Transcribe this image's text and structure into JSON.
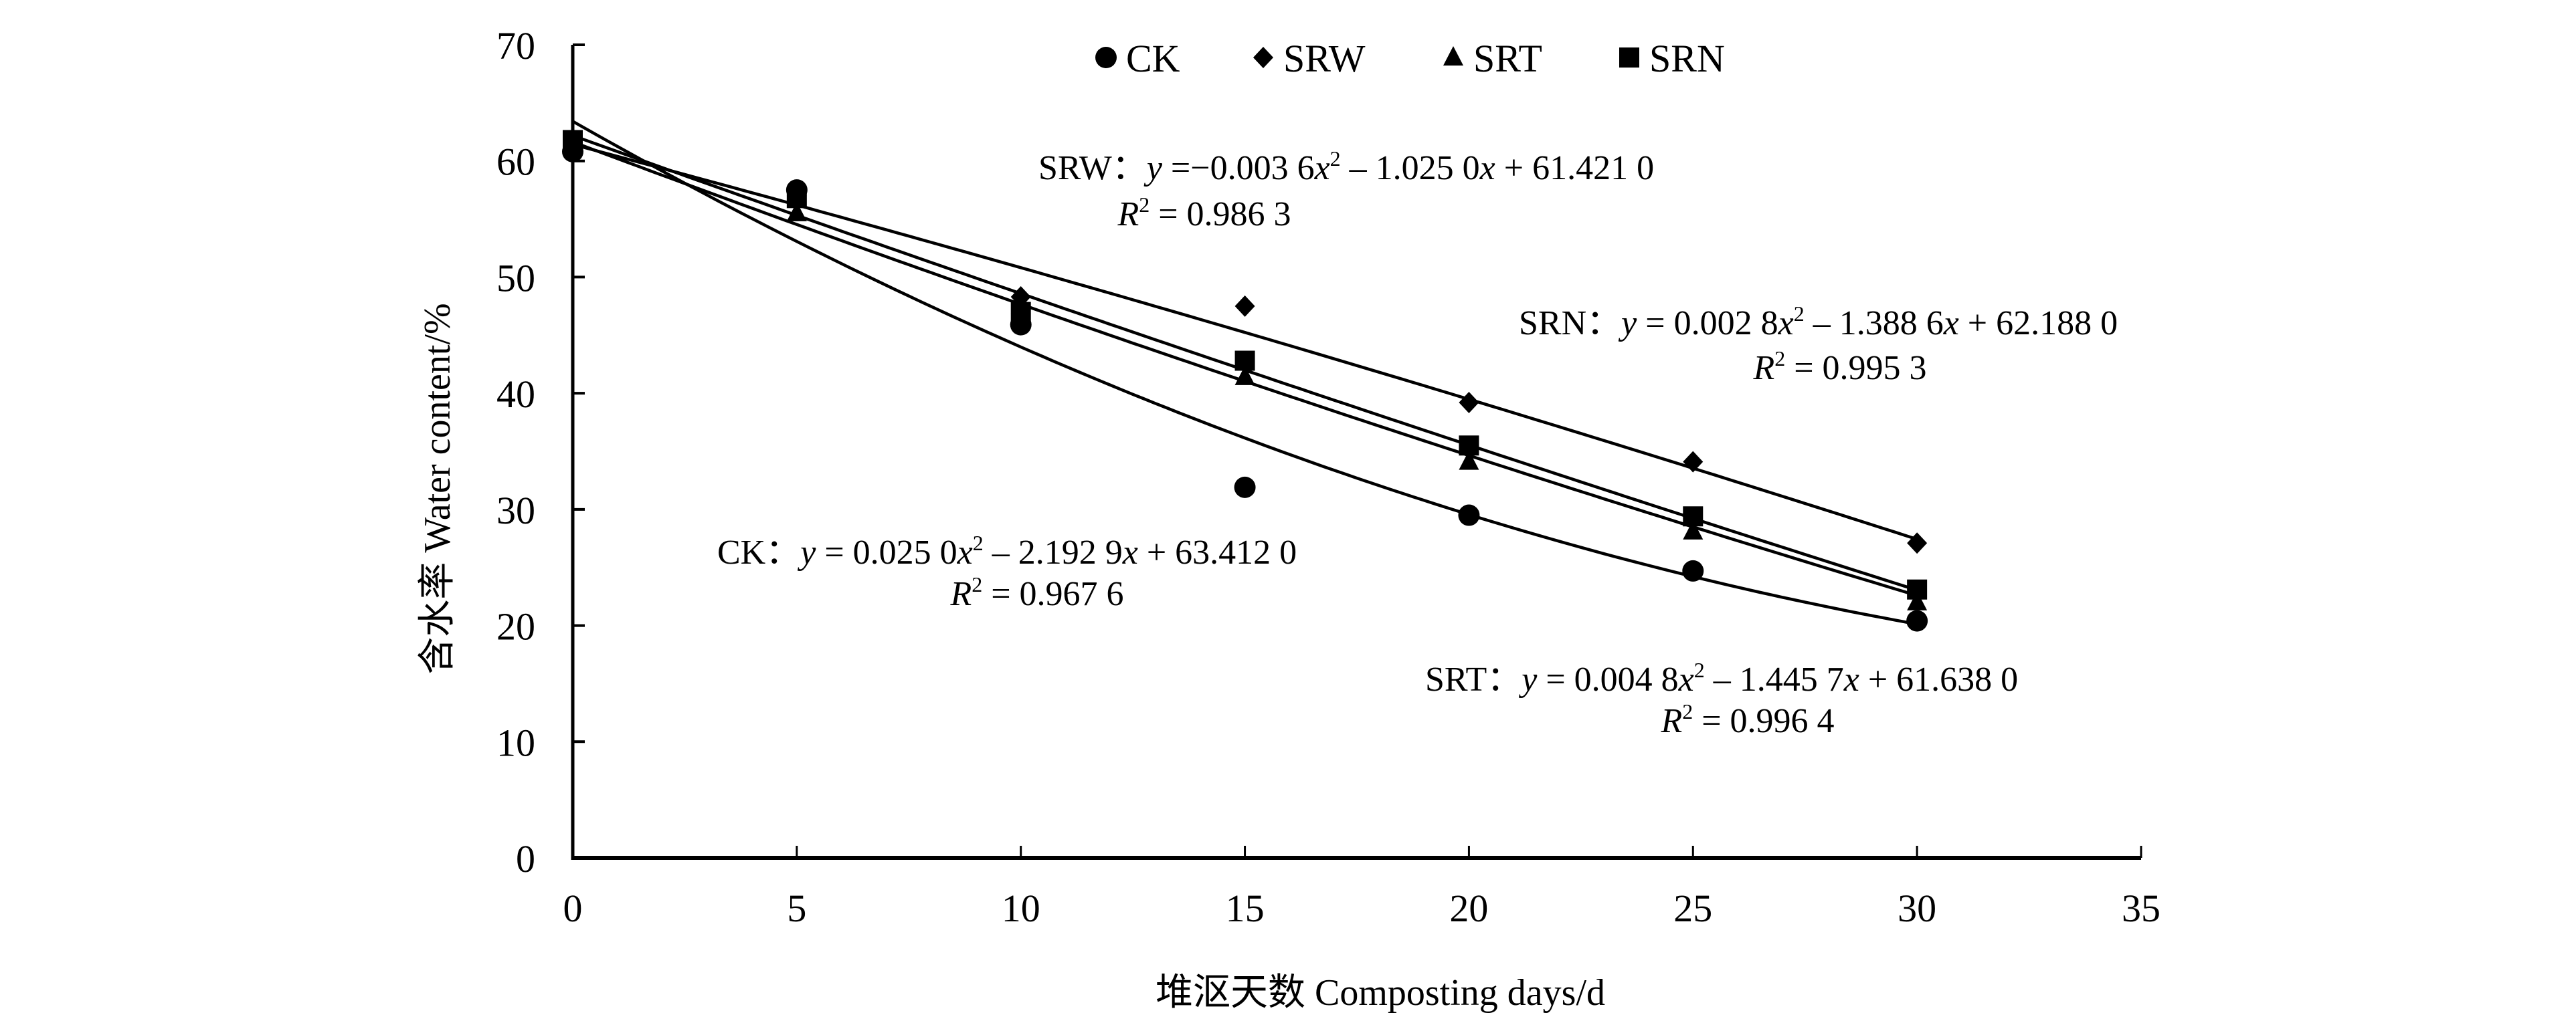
{
  "chart_data": {
    "type": "scatter",
    "title": "",
    "xlabel": "堆沤天数 Composting days/d",
    "ylabel": "含水率 Water content/%",
    "xlim": [
      0,
      35
    ],
    "ylim": [
      0,
      70
    ],
    "xticks": [
      0,
      5,
      10,
      15,
      20,
      25,
      30,
      35
    ],
    "yticks": [
      0,
      10,
      20,
      30,
      40,
      50,
      60,
      70
    ],
    "grid": false,
    "legend_position": "top-center",
    "x": [
      0,
      5,
      10,
      15,
      20,
      25,
      30
    ],
    "series": [
      {
        "name": "CK",
        "marker": "circle",
        "values": [
          60.8,
          57.5,
          45.9,
          31.9,
          29.5,
          24.7,
          20.4
        ],
        "fit": {
          "a": 0.025,
          "b": -2.1929,
          "c": 63.412
        },
        "equation": {
          "prefix": "CK：",
          "y": "y",
          "eq": " = 0.025 0",
          "x1": "x",
          "sup": "2",
          "mid": " – 2.192 9",
          "x2": "x",
          "tail": " + 63.412 0"
        },
        "r2": {
          "R": "R",
          "sup": "2",
          "text": " = 0.967 6"
        }
      },
      {
        "name": "SRW",
        "marker": "diamond",
        "values": [
          61.2,
          57.0,
          48.3,
          47.5,
          39.2,
          34.1,
          27.1
        ],
        "fit": {
          "a": -0.0036,
          "b": -1.025,
          "c": 61.421
        },
        "equation": {
          "prefix": "SRW：",
          "y": "y",
          "eq": " =−0.003 6",
          "x1": "x",
          "sup": "2",
          "mid": " – 1.025 0",
          "x2": "x",
          "tail": " + 61.421 0"
        },
        "r2": {
          "R": "R",
          "sup": "2",
          "text": " = 0.986 3"
        }
      },
      {
        "name": "SRT",
        "marker": "triangle",
        "values": [
          61.3,
          55.5,
          47.5,
          41.4,
          34.1,
          28.1,
          22.0
        ],
        "fit": {
          "a": 0.0048,
          "b": -1.4457,
          "c": 61.638
        },
        "equation": {
          "prefix": "SRT：",
          "y": "y",
          "eq": " = 0.004 8",
          "x1": "x",
          "sup": "2",
          "mid": " – 1.445 7",
          "x2": "x",
          "tail": " + 61.638 0"
        },
        "r2": {
          "R": "R",
          "sup": "2",
          "text": " = 0.996 4"
        }
      },
      {
        "name": "SRN",
        "marker": "square",
        "values": [
          61.8,
          56.8,
          47.0,
          42.8,
          35.5,
          29.4,
          23.1
        ],
        "fit": {
          "a": 0.0028,
          "b": -1.3886,
          "c": 62.188
        },
        "equation": {
          "prefix": "SRN：",
          "y": "y",
          "eq": " = 0.002 8",
          "x1": "x",
          "sup": "2",
          "mid": " – 1.388 6",
          "x2": "x",
          "tail": " + 62.188 0"
        },
        "r2": {
          "R": "R",
          "sup": "2",
          "text": " = 0.995 3"
        }
      }
    ],
    "colors": {
      "ink": "#000000",
      "background": "#ffffff"
    }
  }
}
